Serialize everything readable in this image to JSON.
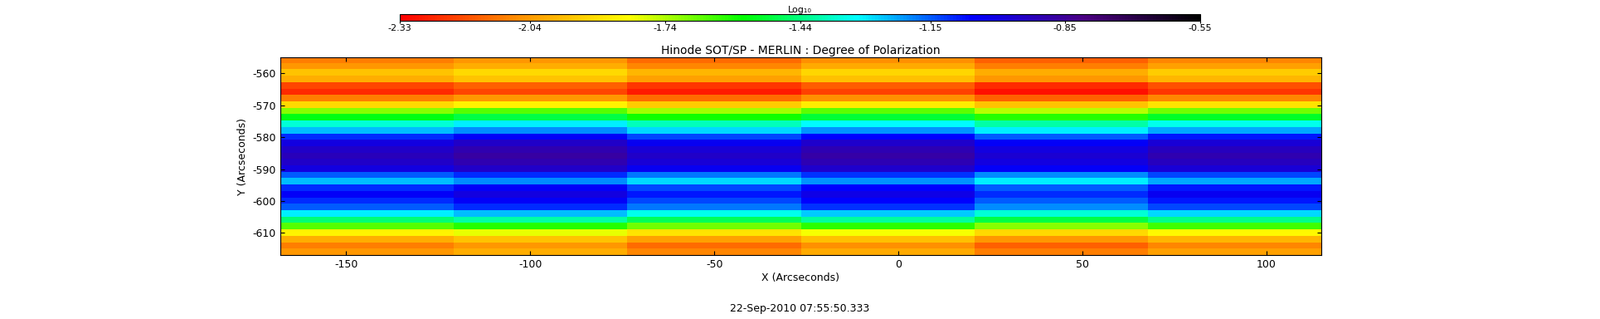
{
  "chart_data": {
    "type": "heatmap",
    "title": "Hinode SOT/SP - MERLIN : Degree of Polarization",
    "x_label": "X (Arcseconds)",
    "y_label": "Y (Arcseconds)",
    "date": "22-Sep-2010 07:55:50.333",
    "xlim": [
      -168,
      115
    ],
    "ylim": [
      -617,
      -555
    ],
    "xticks": [
      -150,
      -100,
      -50,
      0,
      50,
      100
    ],
    "yticks": [
      -610,
      -600,
      -590,
      -580,
      -570,
      -560
    ],
    "colorbar": {
      "label": "Log₁₀",
      "range": [
        -2.33,
        -0.55
      ],
      "ticks": [
        -2.33,
        -2.04,
        -1.74,
        -1.44,
        -1.15,
        -0.85,
        -0.55
      ]
    },
    "cells": [
      [
        -2.1,
        -2.05,
        -2.13,
        -2.06,
        -2.15,
        -2.08
      ],
      [
        -2.05,
        -2.0,
        -2.08,
        -2.01,
        -2.1,
        -2.03
      ],
      [
        -1.95,
        -1.9,
        -1.98,
        -1.91,
        -2.0,
        -1.93
      ],
      [
        -2.0,
        -1.95,
        -2.03,
        -1.96,
        -2.05,
        -1.98
      ],
      [
        -2.2,
        -2.15,
        -2.23,
        -2.16,
        -2.25,
        -2.18
      ],
      [
        -2.25,
        -2.2,
        -2.28,
        -2.21,
        -2.3,
        -2.23
      ],
      [
        -2.1,
        -2.05,
        -2.13,
        -2.06,
        -2.15,
        -2.08
      ],
      [
        -1.9,
        -1.85,
        -1.93,
        -1.86,
        -1.95,
        -1.88
      ],
      [
        -1.7,
        -1.65,
        -1.73,
        -1.66,
        -1.75,
        -1.68
      ],
      [
        -1.55,
        -1.5,
        -1.58,
        -1.51,
        -1.6,
        -1.53
      ],
      [
        -1.35,
        -1.3,
        -1.38,
        -1.31,
        -1.4,
        -1.33
      ],
      [
        -1.25,
        -1.2,
        -1.28,
        -1.21,
        -1.3,
        -1.23
      ],
      [
        -1.1,
        -1.05,
        -1.13,
        -1.06,
        -1.15,
        -1.08
      ],
      [
        -1.0,
        -0.95,
        -1.03,
        -0.96,
        -1.05,
        -0.98
      ],
      [
        -0.95,
        -0.9,
        -0.98,
        -0.91,
        -1.0,
        -0.93
      ],
      [
        -0.92,
        -0.87,
        -0.95,
        -0.88,
        -0.97,
        -0.9
      ],
      [
        -0.95,
        -0.9,
        -0.98,
        -0.91,
        -1.0,
        -0.93
      ],
      [
        -1.0,
        -0.95,
        -1.03,
        -0.96,
        -1.05,
        -0.98
      ],
      [
        -1.15,
        -1.1,
        -1.18,
        -1.11,
        -1.2,
        -1.13
      ],
      [
        -1.25,
        -1.2,
        -1.28,
        -1.21,
        -1.3,
        -1.23
      ],
      [
        -1.1,
        -1.05,
        -1.13,
        -1.06,
        -1.15,
        -1.08
      ],
      [
        -1.05,
        -1.0,
        -1.08,
        -1.01,
        -1.1,
        -1.03
      ],
      [
        -1.1,
        -1.05,
        -1.13,
        -1.06,
        -1.15,
        -1.08
      ],
      [
        -1.15,
        -1.1,
        -1.18,
        -1.11,
        -1.2,
        -1.13
      ],
      [
        -1.3,
        -1.25,
        -1.33,
        -1.26,
        -1.35,
        -1.28
      ],
      [
        -1.45,
        -1.4,
        -1.48,
        -1.41,
        -1.5,
        -1.43
      ],
      [
        -1.65,
        -1.6,
        -1.68,
        -1.61,
        -1.7,
        -1.63
      ],
      [
        -1.85,
        -1.8,
        -1.88,
        -1.81,
        -1.9,
        -1.83
      ],
      [
        -2.0,
        -1.95,
        -2.03,
        -1.96,
        -2.05,
        -1.98
      ],
      [
        -2.1,
        -2.05,
        -2.13,
        -2.06,
        -2.15,
        -2.08
      ],
      [
        -2.05,
        -2.0,
        -2.08,
        -2.01,
        -2.1,
        -2.03
      ]
    ]
  }
}
